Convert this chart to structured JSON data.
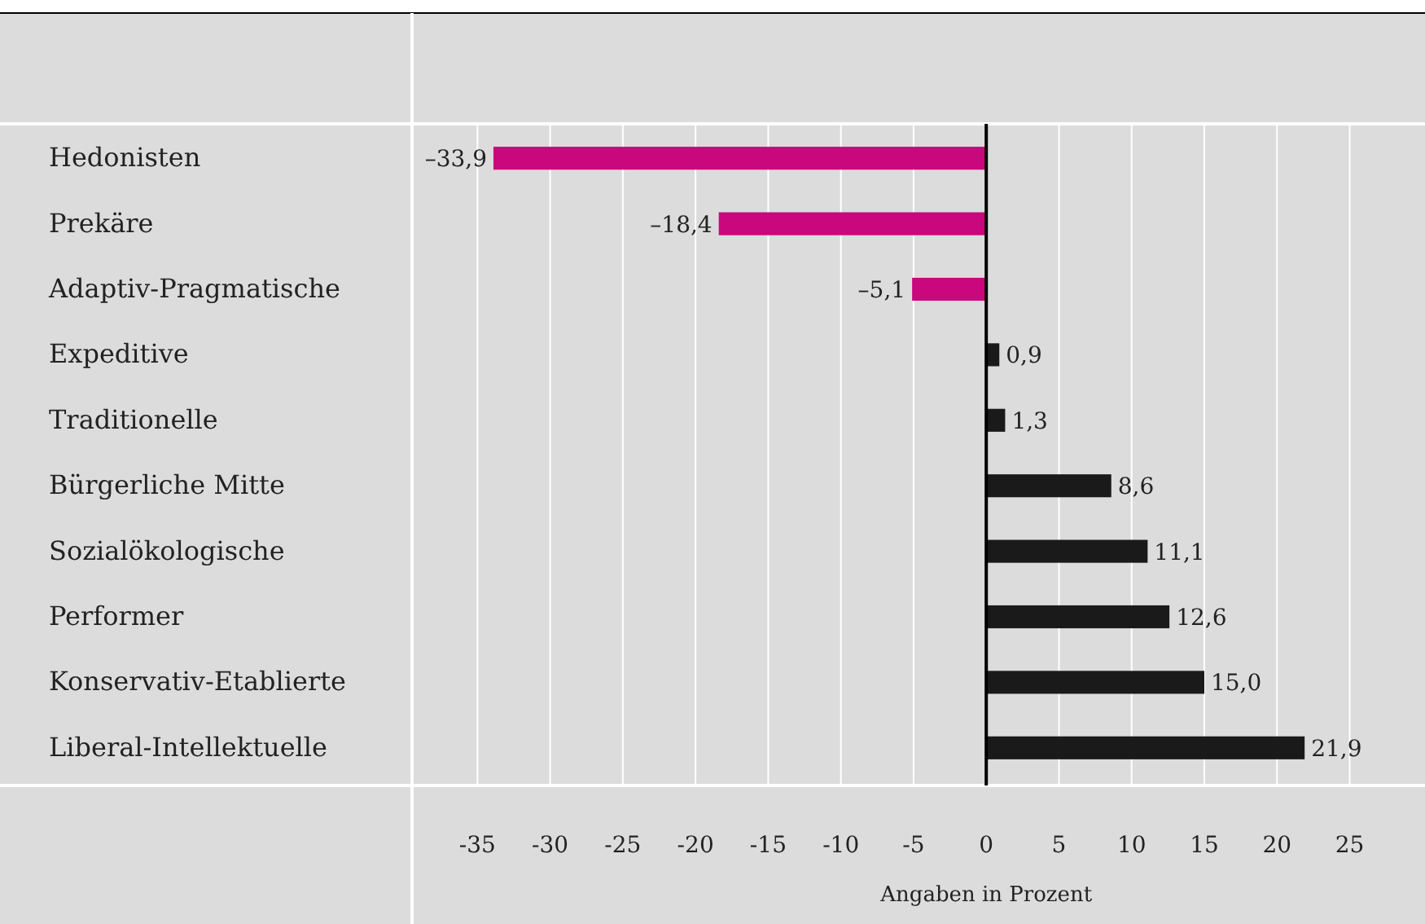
{
  "chart_data": {
    "type": "bar",
    "orientation": "horizontal",
    "xlabel": "Angaben in Prozent",
    "categories": [
      "Hedonisten",
      "Prekäre",
      "Adaptiv-Pragmatische",
      "Expeditive",
      "Traditionelle",
      "Bürgerliche Mitte",
      "Sozialökologische",
      "Performer",
      "Konservativ-Etablierte",
      "Liberal-Intellektuelle"
    ],
    "values": [
      -33.9,
      -18.4,
      -5.1,
      0.9,
      1.3,
      8.6,
      11.1,
      12.6,
      15.0,
      21.9
    ],
    "colors": [
      "#c8087c",
      "#c8087c",
      "#c8087c",
      "#1a1a1a",
      "#1a1a1a",
      "#1a1a1a",
      "#1a1a1a",
      "#1a1a1a",
      "#1a1a1a",
      "#1a1a1a"
    ],
    "value_labels": [
      "–33,9",
      "–18,4",
      "–5,1",
      "0,9",
      "1,3",
      "8,6",
      "11,1",
      "12,6",
      "15,0",
      "21,9"
    ],
    "xlim": [
      -39.5,
      28.5
    ],
    "xticks": [
      -35,
      -30,
      -25,
      -20,
      -15,
      -10,
      -5,
      0,
      5,
      10,
      15,
      20,
      25
    ],
    "grid": "x"
  }
}
